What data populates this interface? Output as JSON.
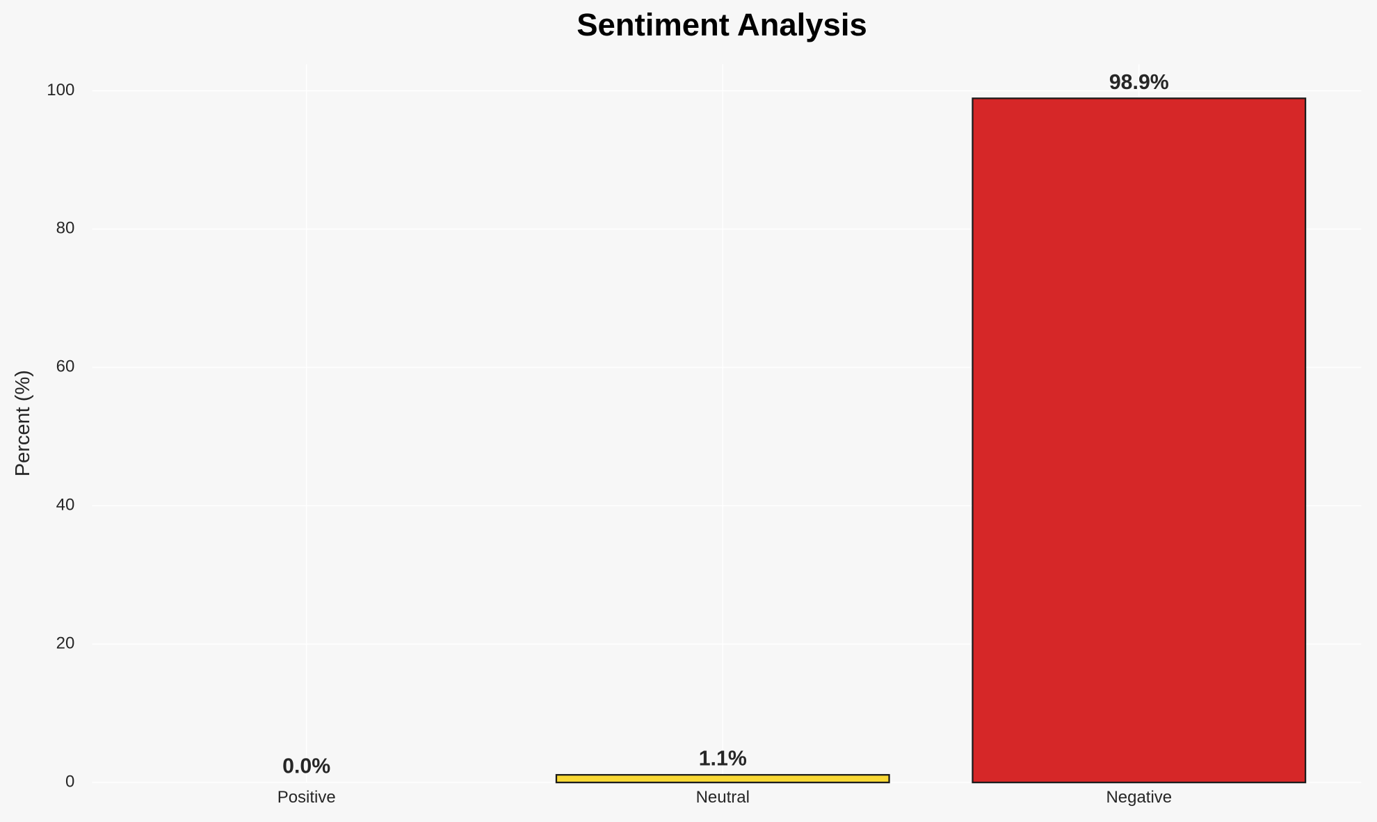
{
  "chart_data": {
    "type": "bar",
    "title": "Sentiment Analysis",
    "ylabel": "Percent (%)",
    "categories": [
      "Positive",
      "Neutral",
      "Negative"
    ],
    "values": [
      0.0,
      1.1,
      98.9
    ],
    "value_labels": [
      "0.0%",
      "1.1%",
      "98.9%"
    ],
    "colors": [
      "#2ca02c",
      "#f9d835",
      "#d62728"
    ],
    "ylim": [
      0,
      103.845
    ],
    "yticks": [
      0,
      20,
      40,
      60,
      80,
      100
    ],
    "grid": true
  }
}
